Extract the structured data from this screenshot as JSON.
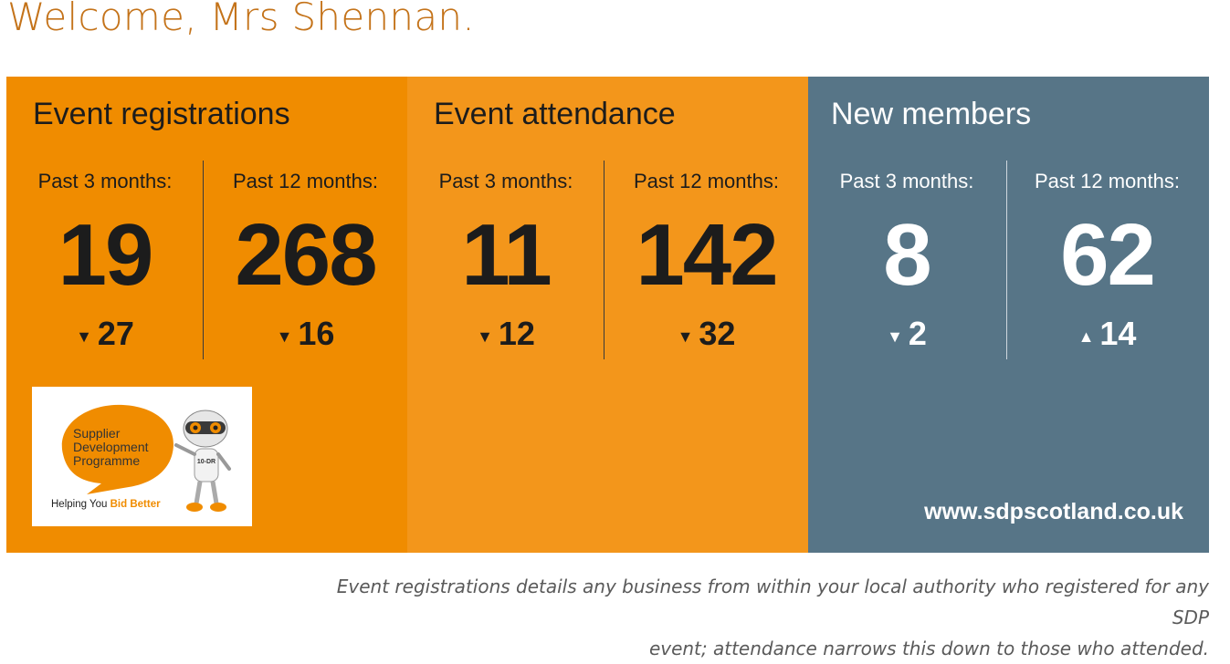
{
  "welcome": "Welcome, Mrs Shennan.",
  "panels": [
    {
      "title": "Event registrations",
      "color": "#f08c00",
      "stats": [
        {
          "label": "Past 3 months:",
          "value": "19",
          "direction": "down",
          "arrow": "▼",
          "change": "27"
        },
        {
          "label": "Past 12 months:",
          "value": "268",
          "direction": "down",
          "arrow": "▼",
          "change": "16"
        }
      ]
    },
    {
      "title": "Event attendance",
      "color": "#f3961b",
      "stats": [
        {
          "label": "Past 3 months:",
          "value": "11",
          "direction": "down",
          "arrow": "▼",
          "change": "12"
        },
        {
          "label": "Past 12 months:",
          "value": "142",
          "direction": "down",
          "arrow": "▼",
          "change": "32"
        }
      ]
    },
    {
      "title": "New members",
      "color": "#577587",
      "stats": [
        {
          "label": "Past 3 months:",
          "value": "8",
          "direction": "down",
          "arrow": "▼",
          "change": "2"
        },
        {
          "label": "Past 12 months:",
          "value": "62",
          "direction": "up",
          "arrow": "▲",
          "change": "14"
        }
      ]
    }
  ],
  "logo": {
    "line1": "Supplier",
    "line2": "Development",
    "line3": "Programme",
    "tagline": "Helping You",
    "tagline_highlight": "Bid Better",
    "robot_label": "10-DR"
  },
  "site_url": "www.sdpscotland.co.uk",
  "footnote_line1": "Event registrations details any business from within your local authority who registered for any SDP",
  "footnote_line2": "event; attendance narrows this down to those who attended."
}
